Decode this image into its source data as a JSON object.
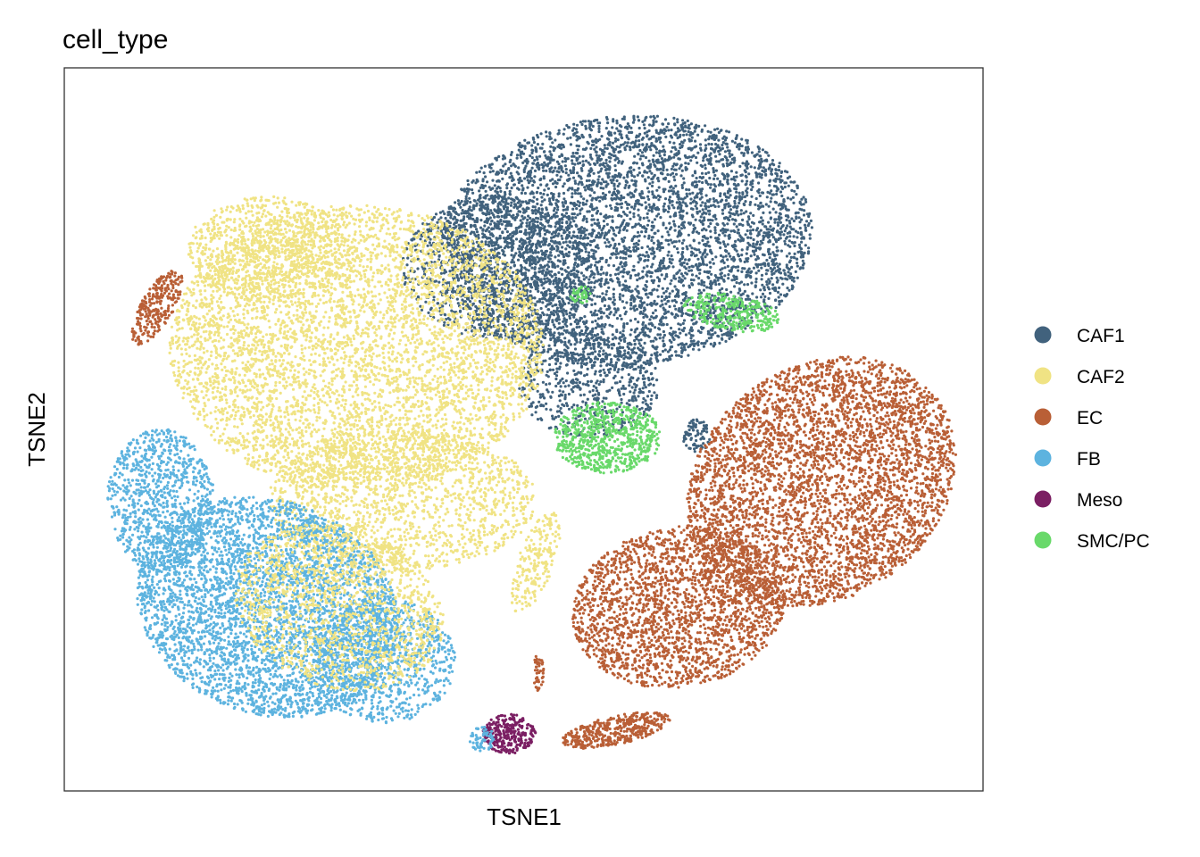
{
  "chart_data": {
    "type": "scatter",
    "title": "cell_type",
    "xlabel": "TSNE1",
    "ylabel": "TSNE2",
    "xlim": [
      0,
      100
    ],
    "ylim": [
      0,
      100
    ],
    "grid": false,
    "axis_ticks": false,
    "legend_position": "right",
    "series": [
      {
        "name": "CAF1",
        "color": "#41627d"
      },
      {
        "name": "CAF2",
        "color": "#f0e384"
      },
      {
        "name": "EC",
        "color": "#b95f36"
      },
      {
        "name": "FB",
        "color": "#5db3df"
      },
      {
        "name": "Meso",
        "color": "#7b1f63"
      },
      {
        "name": "SMC/PC",
        "color": "#69d96a"
      }
    ]
  }
}
